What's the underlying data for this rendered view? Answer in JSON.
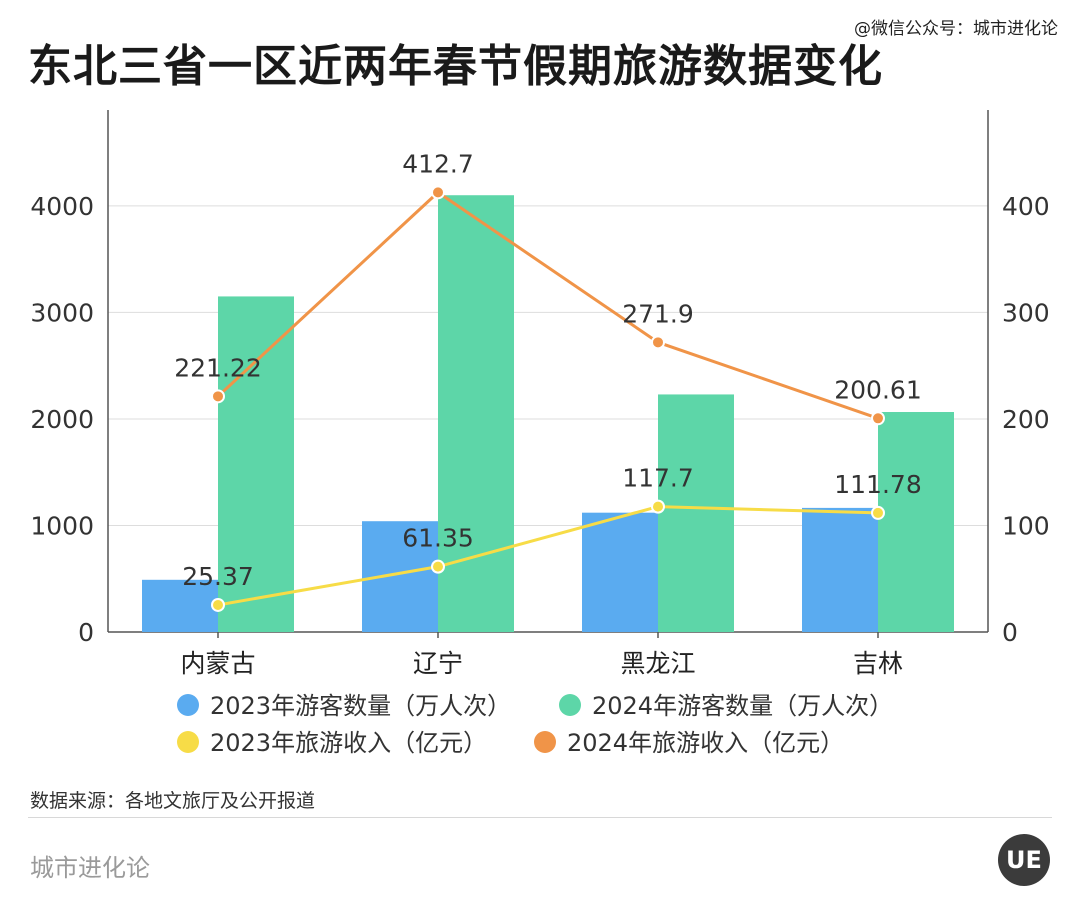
{
  "header": {
    "title": "东北三省一区近两年春节假期旅游数据变化",
    "credit": "@微信公众号：城市进化论"
  },
  "footer": {
    "source": "数据来源：各地文旅厅及公开报道",
    "brand": "城市进化论",
    "logo_text": "UE"
  },
  "colors": {
    "bar_2023": "#5aabf0",
    "bar_2024": "#5dd6a8",
    "line_2023": "#f7dc47",
    "line_2024": "#f09448",
    "axis": "#555555",
    "grid": "#dddddd"
  },
  "chart_data": {
    "type": "bar",
    "categories": [
      "内蒙古",
      "辽宁",
      "黑龙江",
      "吉林"
    ],
    "bar_series": [
      {
        "name": "2023年游客数量（万人次）",
        "values": [
          490,
          1040,
          1120,
          1165
        ],
        "color": "#5aabf0"
      },
      {
        "name": "2024年游客数量（万人次）",
        "values": [
          3150,
          4100,
          2230,
          2065
        ],
        "color": "#5dd6a8"
      }
    ],
    "line_series": [
      {
        "name": "2023年旅游收入（亿元）",
        "values": [
          25.37,
          61.35,
          117.7,
          111.78
        ],
        "color": "#f7dc47",
        "labels": [
          "25.37",
          "61.35",
          "117.7",
          "111.78"
        ]
      },
      {
        "name": "2024年旅游收入（亿元）",
        "values": [
          221.22,
          412.7,
          271.9,
          200.61
        ],
        "color": "#f09448",
        "labels": [
          "221.22",
          "412.7",
          "271.9",
          "200.61"
        ]
      }
    ],
    "y_left": {
      "ticks": [
        0,
        1000,
        2000,
        3000,
        4000
      ],
      "range": [
        0,
        4900
      ]
    },
    "y_right": {
      "ticks": [
        0,
        100,
        200,
        300,
        400
      ],
      "range": [
        0,
        490
      ]
    },
    "grid": true,
    "legend_position": "bottom"
  }
}
